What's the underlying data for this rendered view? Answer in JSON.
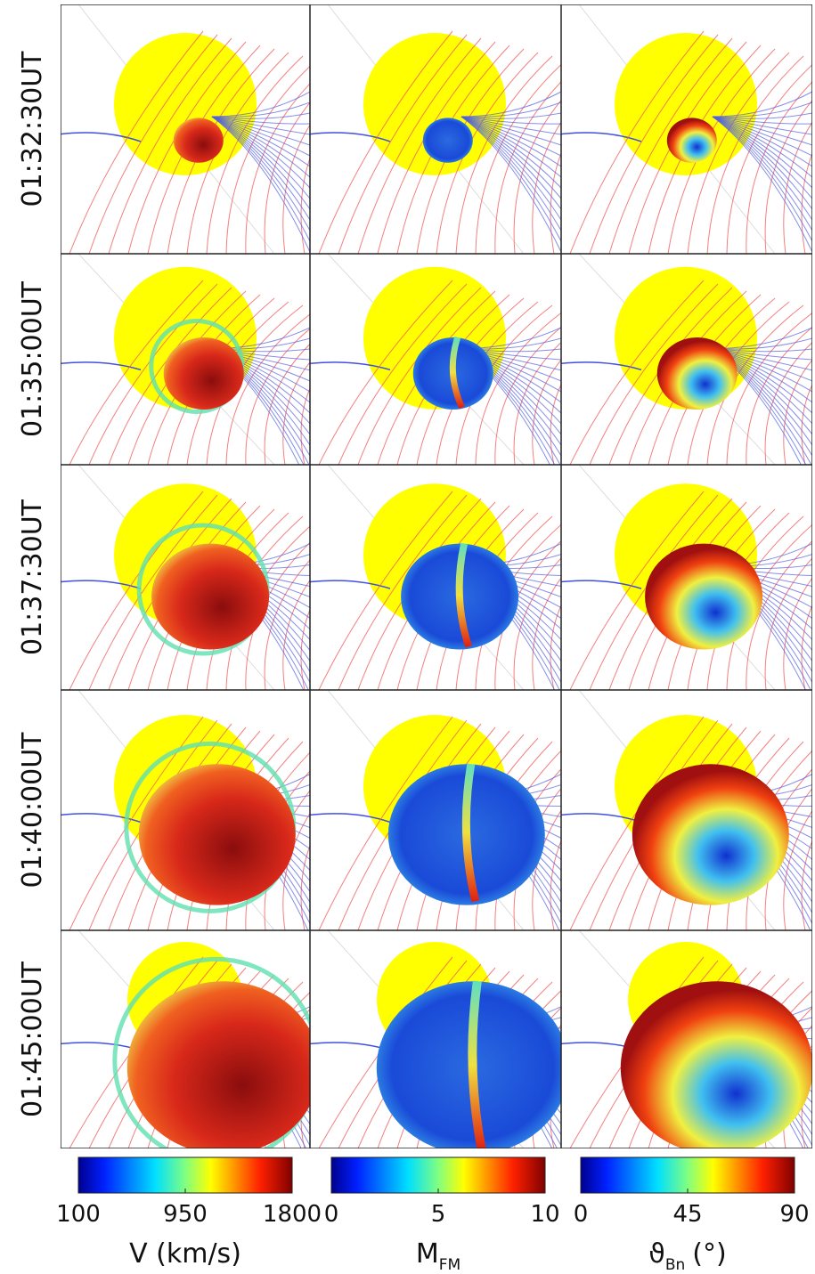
{
  "rows": [
    "01:32:30UT",
    "01:35:00UT",
    "01:37:30UT",
    "01:40:00UT",
    "01:45:00UT"
  ],
  "colorbars": [
    {
      "label": "V (km/s)",
      "lim": [
        100,
        1800
      ],
      "ticks": [
        100,
        950,
        1800
      ]
    },
    {
      "label": "M",
      "label_sub": "FM",
      "lim": [
        0,
        10
      ],
      "ticks": [
        0,
        5,
        10
      ]
    },
    {
      "label": "ϑ",
      "label_sub": "Bn",
      "label_unit": "(°)",
      "lim": [
        0,
        90
      ],
      "ticks": [
        0,
        45,
        90
      ]
    }
  ]
}
